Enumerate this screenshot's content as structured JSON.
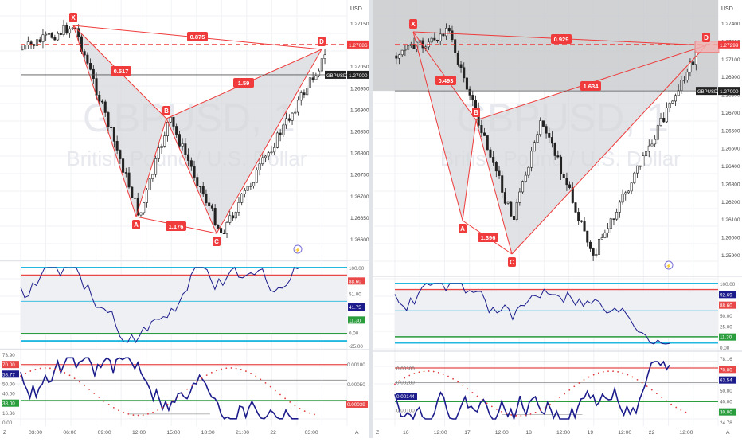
{
  "colors": {
    "up": "#ffffff",
    "down": "#222222",
    "pattern_line": "#ef3b3b",
    "pattern_fill": "#d4d6da",
    "oscillator": "#1c1c8c",
    "level_red": "#e84848",
    "level_green": "#2a9d3c",
    "level_cyan": "#22b8e0",
    "dots": "#e23c3c",
    "grid": "#f0f2f5"
  },
  "chart_data": [
    {
      "type": "candlestick",
      "symbol_watermark": "GBPUSD, 1",
      "subtitle_watermark": "British Pound / U.S. Dollar",
      "currency": "USD",
      "symbol_tag": "GBPUSD",
      "price_tag": "1.27000",
      "target_tag": "1.27086",
      "y_range": [
        1.2655,
        1.2716
      ],
      "y_ticks": [
        "1.27150",
        "1.27100",
        "1.27050",
        "1.26950",
        "1.26900",
        "1.26850",
        "1.26800",
        "1.26750",
        "1.26700",
        "1.26650",
        "1.26600"
      ],
      "x_labels": [
        "Z",
        "03:00",
        "06:00",
        "09:00",
        "12:00",
        "15:00",
        "18:00",
        "21:00",
        "22",
        "03:00",
        "A"
      ],
      "pattern": {
        "X": 1.2714,
        "A": 1.26595,
        "B": 1.26925,
        "C": 1.2655,
        "D": 1.271,
        "ratios": {
          "XB": "0.517",
          "AC": "1.176",
          "BD": "1.59",
          "XD": "0.875"
        }
      },
      "target_line": 1.27086,
      "current_price": 1.27,
      "osc1": {
        "ticks": [
          "100.00",
          "88.60",
          "51.00",
          "41.75",
          "11.30",
          "0.00",
          "-25.00"
        ],
        "value": "41.75"
      },
      "osc2": {
        "ticks": [
          "73.90",
          "70.00",
          "58.77",
          "50.00",
          "40.00",
          "38.00",
          "16.36",
          "0.00"
        ],
        "right_ticks": [
          "0.00100",
          "0.00050",
          "0.00039"
        ],
        "value": "58.77"
      }
    },
    {
      "type": "candlestick",
      "symbol_watermark": "GBPUSD, 1",
      "subtitle_watermark": "British Pound / U.S. Dollar",
      "currency": "USD",
      "symbol_tag": "GBPUSD",
      "price_tag": "1.27000",
      "target_tag": "1.27299",
      "y_range": [
        1.259,
        1.2745
      ],
      "y_ticks": [
        "1.27400",
        "1.27200",
        "1.27100",
        "1.26900",
        "1.26800",
        "1.26700",
        "1.26600",
        "1.26500",
        "1.26400",
        "1.26300",
        "1.26200",
        "1.26100",
        "1.26000",
        "1.25900"
      ],
      "x_labels": [
        "Z",
        "16",
        "12:00",
        "17",
        "12:00",
        "18",
        "12:00",
        "19",
        "12:00",
        "22",
        "12:00",
        "A"
      ],
      "pattern": {
        "X": 1.2738,
        "A": 1.262,
        "B": 1.268,
        "C": 1.2595,
        "D": 1.273,
        "ratios": {
          "XB": "0.493",
          "AC": "1.396",
          "BD": "1.634",
          "XD": "0.929"
        }
      },
      "target_line": 1.27299,
      "current_price": 1.27,
      "osc1": {
        "ticks": [
          "100.00",
          "92.69",
          "88.60",
          "50.00",
          "25.00",
          "11.30",
          "0.00"
        ],
        "value": "92.69"
      },
      "osc2": {
        "ticks": [
          "78.16",
          "70.00",
          "63.54",
          "50.00",
          "40.00",
          "30.00",
          "24.78"
        ],
        "left_ticks": [
          "0.00300",
          "0.00200",
          "0.00144",
          "0.00100"
        ],
        "value": "63.54"
      }
    }
  ]
}
